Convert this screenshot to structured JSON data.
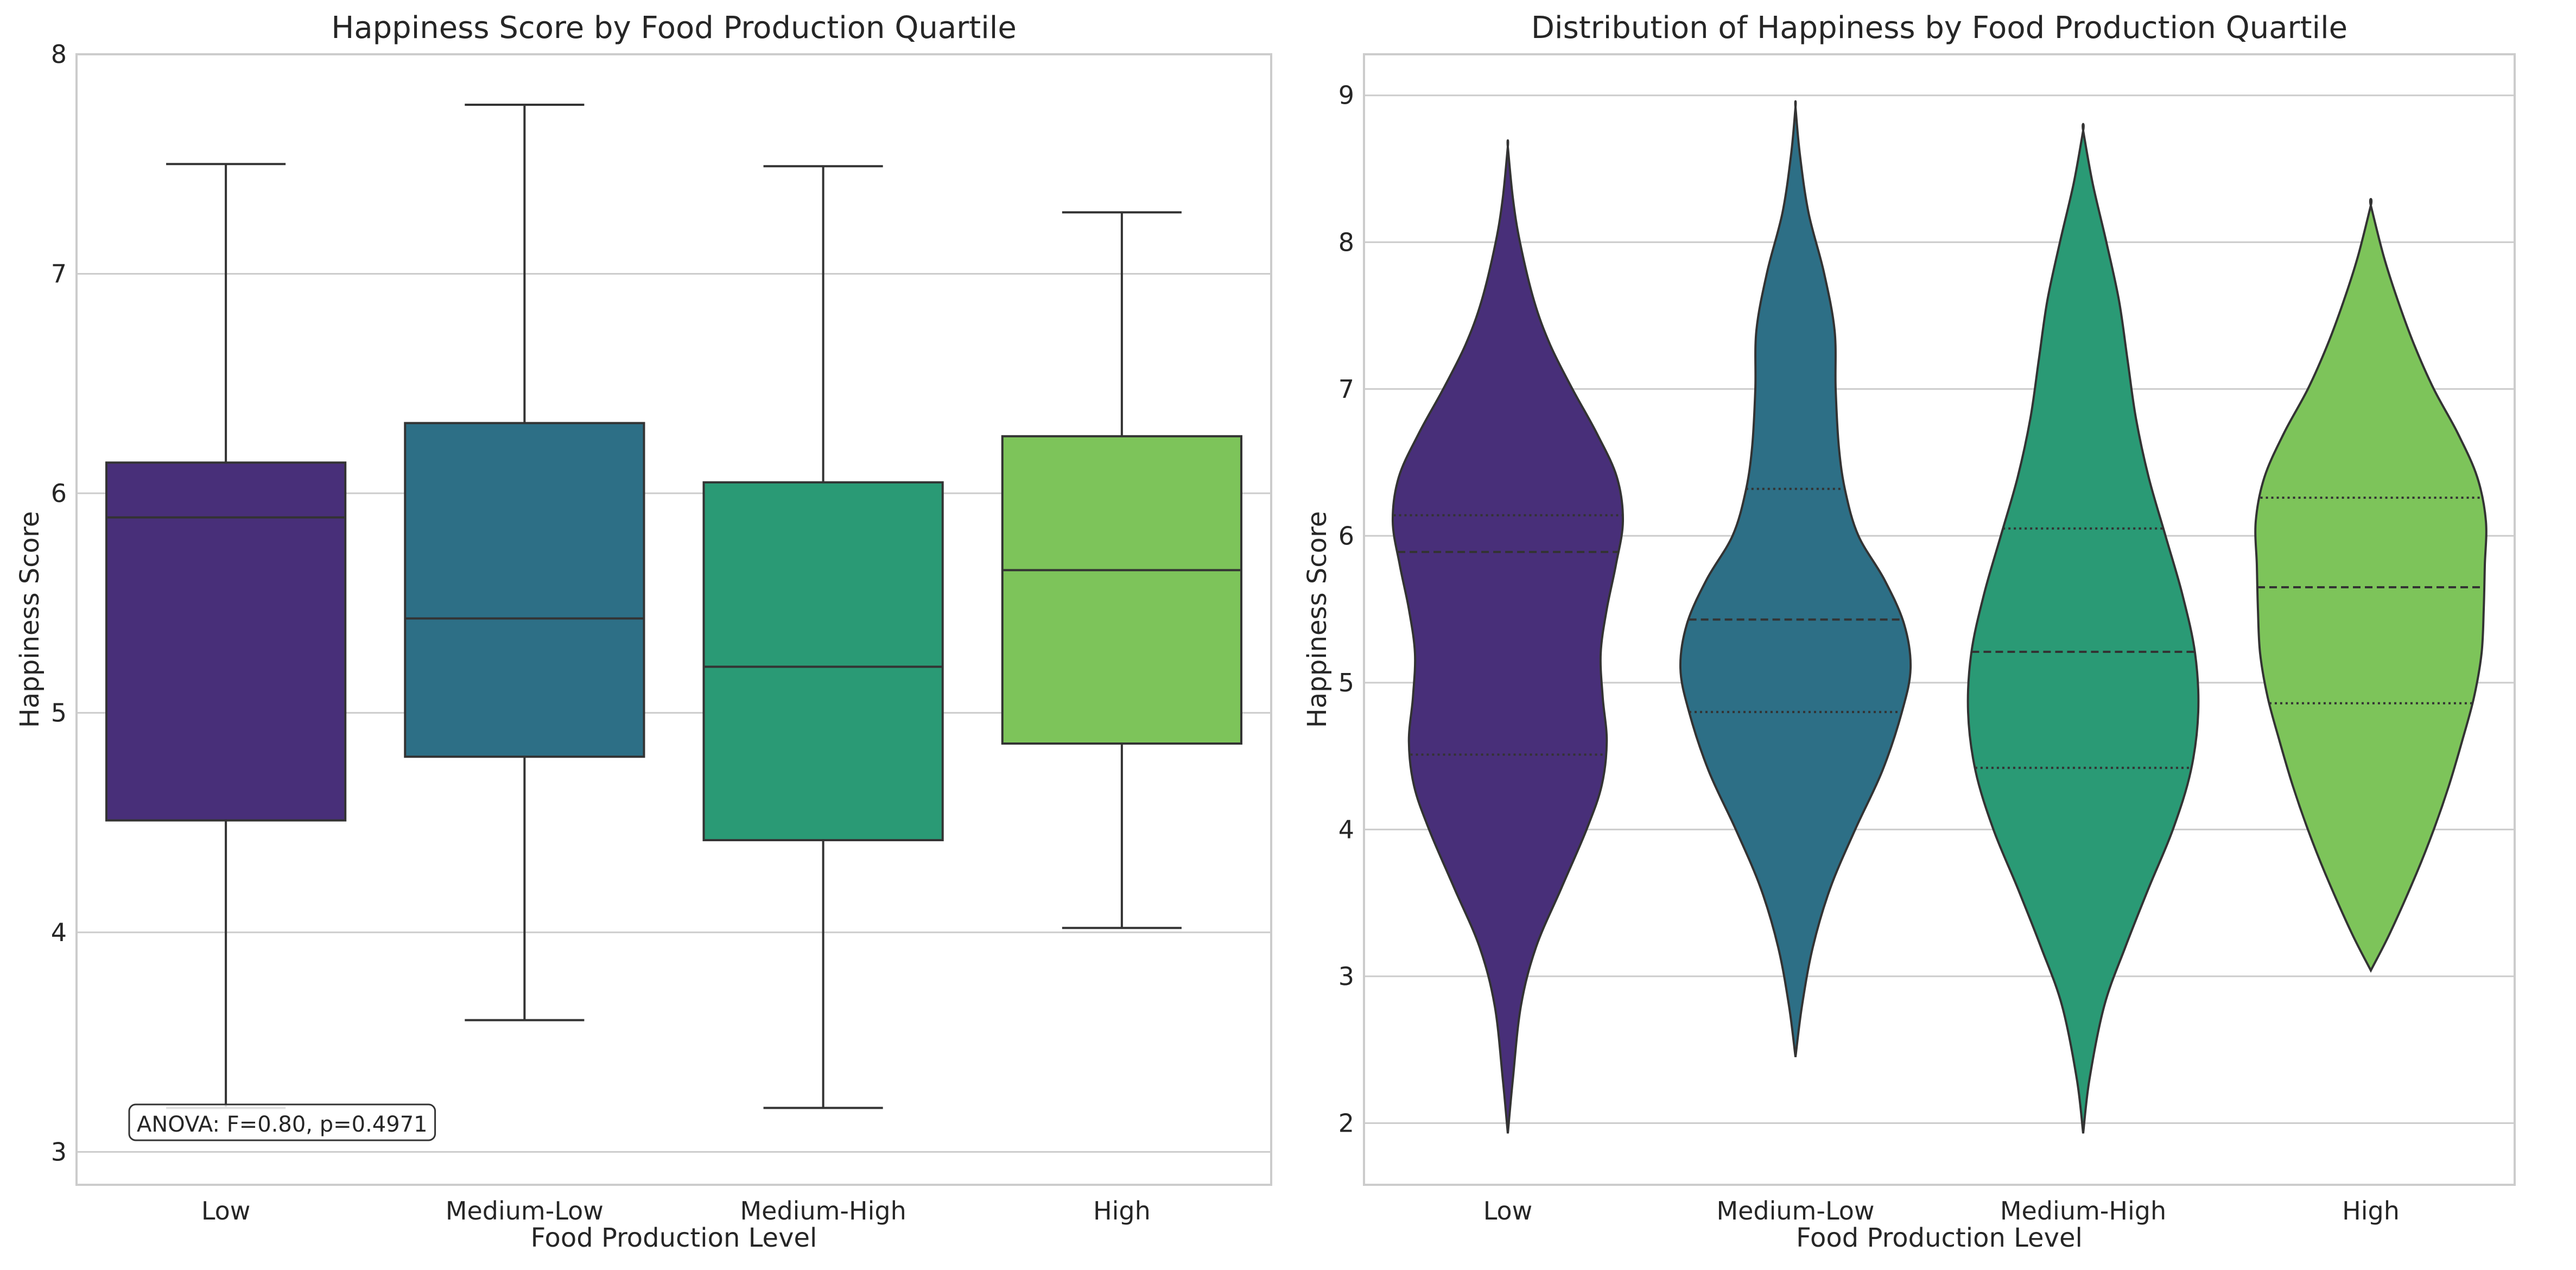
{
  "chart_data": [
    {
      "type": "box",
      "title": "Happiness Score by Food Production Quartile",
      "xlabel": "Food Production Level",
      "ylabel": "Happiness Score",
      "ylim": [
        2.85,
        8.0
      ],
      "yticks": [
        3,
        4,
        5,
        6,
        7,
        8
      ],
      "grid": "horizontal",
      "categories": [
        "Low",
        "Medium-Low",
        "Medium-High",
        "High"
      ],
      "colors": [
        "#482f79",
        "#2d6f86",
        "#2a9a75",
        "#7dc45a"
      ],
      "boxes": [
        {
          "name": "Low",
          "whisker_low": 3.2,
          "q1": 4.51,
          "median": 5.89,
          "q3": 6.14,
          "whisker_high": 7.5
        },
        {
          "name": "Medium-Low",
          "whisker_low": 3.6,
          "q1": 4.8,
          "median": 5.43,
          "q3": 6.32,
          "whisker_high": 7.77
        },
        {
          "name": "Medium-High",
          "whisker_low": 3.2,
          "q1": 4.42,
          "median": 5.21,
          "q3": 6.05,
          "whisker_high": 7.49
        },
        {
          "name": "High",
          "whisker_low": 4.02,
          "q1": 4.86,
          "median": 5.65,
          "q3": 6.26,
          "whisker_high": 7.28
        }
      ],
      "annotation": "ANOVA: F=0.80, p=0.4971"
    },
    {
      "type": "violin",
      "title": "Distribution of Happiness by Food Production Quartile",
      "xlabel": "Food Production Level",
      "ylabel": "Happiness Score",
      "ylim": [
        1.58,
        9.28
      ],
      "yticks": [
        2,
        3,
        4,
        5,
        6,
        7,
        8,
        9
      ],
      "grid": "horizontal",
      "categories": [
        "Low",
        "Medium-Low",
        "Medium-High",
        "High"
      ],
      "colors": [
        "#482f79",
        "#2d6f86",
        "#2a9a75",
        "#7dc45a"
      ],
      "violins": [
        {
          "name": "Low",
          "min": 1.93,
          "max": 8.65,
          "q1": 4.51,
          "median": 5.89,
          "q3": 6.14,
          "profile": [
            [
              1.93,
              0.0
            ],
            [
              2.3,
              0.05
            ],
            [
              2.8,
              0.13
            ],
            [
              3.2,
              0.28
            ],
            [
              3.6,
              0.53
            ],
            [
              4.0,
              0.78
            ],
            [
              4.3,
              0.93
            ],
            [
              4.6,
              0.98
            ],
            [
              4.9,
              0.94
            ],
            [
              5.2,
              0.92
            ],
            [
              5.5,
              0.98
            ],
            [
              5.8,
              1.07
            ],
            [
              6.1,
              1.14
            ],
            [
              6.4,
              1.08
            ],
            [
              6.7,
              0.88
            ],
            [
              7.0,
              0.64
            ],
            [
              7.3,
              0.42
            ],
            [
              7.6,
              0.26
            ],
            [
              8.0,
              0.12
            ],
            [
              8.3,
              0.05
            ],
            [
              8.65,
              0.0
            ]
          ]
        },
        {
          "name": "Medium-Low",
          "min": 2.45,
          "max": 8.92,
          "q1": 4.8,
          "median": 5.43,
          "q3": 6.32,
          "profile": [
            [
              2.45,
              0.0
            ],
            [
              2.8,
              0.06
            ],
            [
              3.2,
              0.16
            ],
            [
              3.6,
              0.32
            ],
            [
              4.0,
              0.55
            ],
            [
              4.4,
              0.8
            ],
            [
              4.8,
              0.98
            ],
            [
              5.1,
              1.06
            ],
            [
              5.4,
              1.0
            ],
            [
              5.7,
              0.82
            ],
            [
              6.0,
              0.58
            ],
            [
              6.3,
              0.46
            ],
            [
              6.6,
              0.4
            ],
            [
              7.0,
              0.37
            ],
            [
              7.4,
              0.36
            ],
            [
              7.8,
              0.26
            ],
            [
              8.2,
              0.12
            ],
            [
              8.6,
              0.04
            ],
            [
              8.92,
              0.0
            ]
          ]
        },
        {
          "name": "Medium-High",
          "min": 1.93,
          "max": 8.76,
          "q1": 4.42,
          "median": 5.21,
          "q3": 6.05,
          "profile": [
            [
              1.93,
              0.0
            ],
            [
              2.3,
              0.06
            ],
            [
              2.8,
              0.2
            ],
            [
              3.2,
              0.4
            ],
            [
              3.6,
              0.62
            ],
            [
              4.0,
              0.85
            ],
            [
              4.4,
              1.02
            ],
            [
              4.8,
              1.09
            ],
            [
              5.2,
              1.06
            ],
            [
              5.6,
              0.94
            ],
            [
              6.0,
              0.78
            ],
            [
              6.4,
              0.62
            ],
            [
              6.8,
              0.5
            ],
            [
              7.2,
              0.42
            ],
            [
              7.6,
              0.34
            ],
            [
              8.0,
              0.22
            ],
            [
              8.4,
              0.09
            ],
            [
              8.76,
              0.0
            ]
          ]
        },
        {
          "name": "High",
          "min": 3.04,
          "max": 8.25,
          "q1": 4.86,
          "median": 5.65,
          "q3": 6.26,
          "profile": [
            [
              3.04,
              0.0
            ],
            [
              3.3,
              0.18
            ],
            [
              3.7,
              0.42
            ],
            [
              4.0,
              0.58
            ],
            [
              4.3,
              0.72
            ],
            [
              4.6,
              0.84
            ],
            [
              4.9,
              0.95
            ],
            [
              5.2,
              1.02
            ],
            [
              5.5,
              1.04
            ],
            [
              5.8,
              1.05
            ],
            [
              6.1,
              1.06
            ],
            [
              6.4,
              0.98
            ],
            [
              6.7,
              0.8
            ],
            [
              7.0,
              0.58
            ],
            [
              7.3,
              0.4
            ],
            [
              7.6,
              0.25
            ],
            [
              7.9,
              0.12
            ],
            [
              8.25,
              0.0
            ]
          ]
        }
      ]
    }
  ]
}
